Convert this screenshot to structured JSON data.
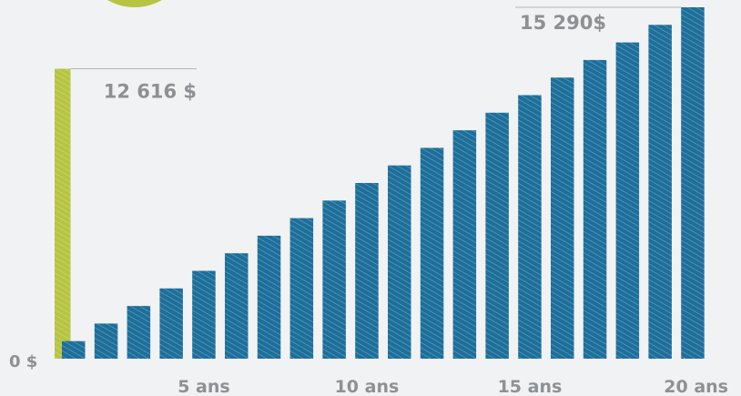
{
  "chart_data": {
    "type": "bar",
    "title": "",
    "xlabel": "",
    "ylabel": "",
    "categories": [
      "1",
      "2",
      "3",
      "4",
      "5",
      "6",
      "7",
      "8",
      "9",
      "10",
      "11",
      "12",
      "13",
      "14",
      "15",
      "16",
      "17",
      "18",
      "19",
      "20"
    ],
    "series": [
      {
        "values": [
          12616,
          null,
          null,
          null,
          null,
          null,
          null,
          null,
          null,
          null,
          null,
          null,
          null,
          null,
          null,
          null,
          null,
          null,
          null,
          null
        ],
        "color": "#b6c441",
        "pattern": "hatched"
      },
      {
        "values": [
          765,
          1529,
          2294,
          3058,
          3823,
          4587,
          5352,
          6116,
          6881,
          7645,
          8410,
          9174,
          9939,
          10703,
          11468,
          12232,
          12997,
          13761,
          14526,
          15290
        ],
        "color": "#1d6f9b",
        "pattern": "hatched"
      }
    ],
    "ylim": [
      0,
      15290
    ],
    "grid": false,
    "legend": "none",
    "y_tick_label": "0 $",
    "x_tick_labels": [
      {
        "category": "5",
        "label": "5 ans"
      },
      {
        "category": "10",
        "label": "10 ans"
      },
      {
        "category": "15",
        "label": "15 ans"
      },
      {
        "category": "20",
        "label": "20 ans"
      }
    ],
    "annotations": [
      {
        "series": 0,
        "category": "1",
        "label": "12 616 $"
      },
      {
        "series": 1,
        "category": "20",
        "label": "15 290$"
      }
    ]
  },
  "colors": {
    "background": "#f1f2f4",
    "label": "#8d9194",
    "leader_line": "#b3b6b9",
    "decoration": "#b6c441"
  },
  "decoration_icon": "green-circle-shape"
}
